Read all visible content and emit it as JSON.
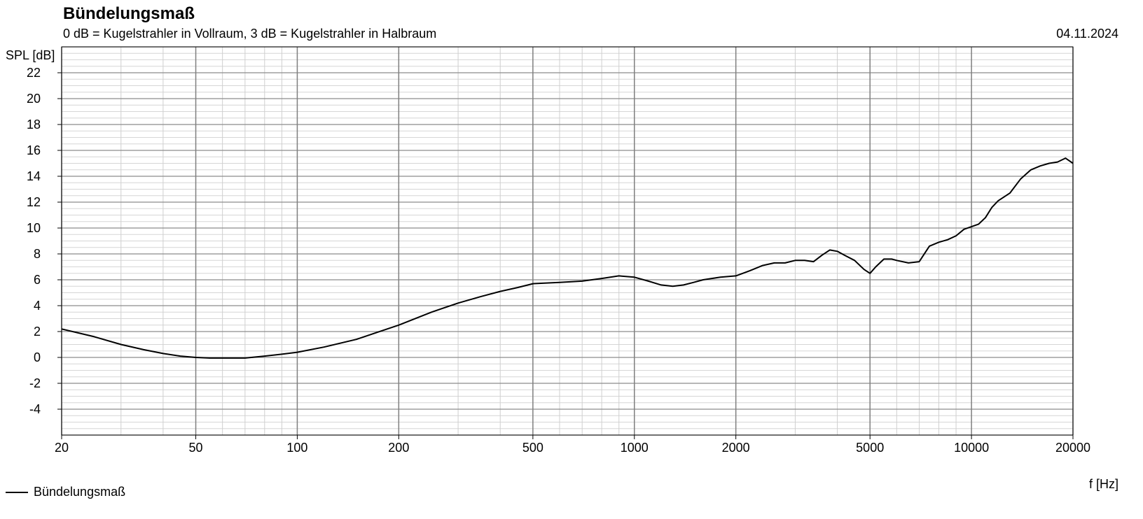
{
  "header": {
    "title": "Bündelungsmaß",
    "subtitle": "0 dB = Kugelstrahler in Vollraum, 3 dB = Kugelstrahler in Halbraum",
    "date": "04.11.2024"
  },
  "chart_data": {
    "type": "line",
    "title": "Bündelungsmaß",
    "subtitle": "0 dB = Kugelstrahler in Vollraum, 3 dB = Kugelstrahler in Halbraum",
    "xlabel": "f [Hz]",
    "ylabel": "SPL [dB]",
    "x_scale": "log",
    "xlim": [
      20,
      20000
    ],
    "ylim": [
      -6,
      24
    ],
    "x_ticks": [
      20,
      50,
      100,
      200,
      500,
      1000,
      2000,
      5000,
      10000,
      20000
    ],
    "y_ticks": [
      -4,
      -2,
      0,
      2,
      4,
      6,
      8,
      10,
      12,
      14,
      16,
      18,
      20,
      22
    ],
    "grid": true,
    "legend_position": "bottom-left",
    "series": [
      {
        "name": "Bündelungsmaß",
        "color": "#000000",
        "x": [
          20,
          25,
          30,
          35,
          40,
          45,
          50,
          55,
          60,
          70,
          80,
          90,
          100,
          120,
          150,
          180,
          200,
          250,
          300,
          350,
          400,
          450,
          500,
          600,
          700,
          800,
          900,
          1000,
          1100,
          1200,
          1300,
          1400,
          1500,
          1600,
          1800,
          2000,
          2200,
          2400,
          2600,
          2800,
          3000,
          3200,
          3400,
          3600,
          3800,
          4000,
          4200,
          4500,
          4800,
          5000,
          5200,
          5500,
          5800,
          6000,
          6500,
          7000,
          7500,
          8000,
          8500,
          9000,
          9500,
          10000,
          10500,
          11000,
          11500,
          12000,
          13000,
          14000,
          15000,
          16000,
          17000,
          18000,
          19000,
          20000
        ],
        "y": [
          2.2,
          1.6,
          1.0,
          0.6,
          0.3,
          0.1,
          0.0,
          -0.05,
          -0.05,
          -0.05,
          0.1,
          0.25,
          0.4,
          0.8,
          1.4,
          2.1,
          2.5,
          3.5,
          4.2,
          4.7,
          5.1,
          5.4,
          5.7,
          5.8,
          5.9,
          6.1,
          6.3,
          6.2,
          5.9,
          5.6,
          5.5,
          5.6,
          5.8,
          6.0,
          6.2,
          6.3,
          6.7,
          7.1,
          7.3,
          7.3,
          7.5,
          7.5,
          7.4,
          7.9,
          8.3,
          8.2,
          7.9,
          7.5,
          6.8,
          6.5,
          7.0,
          7.6,
          7.6,
          7.5,
          7.3,
          7.4,
          8.6,
          8.9,
          9.1,
          9.4,
          9.9,
          10.1,
          10.3,
          10.8,
          11.6,
          12.1,
          12.7,
          13.8,
          14.5,
          14.8,
          15.0,
          15.1,
          15.4,
          15.0
        ]
      }
    ]
  }
}
